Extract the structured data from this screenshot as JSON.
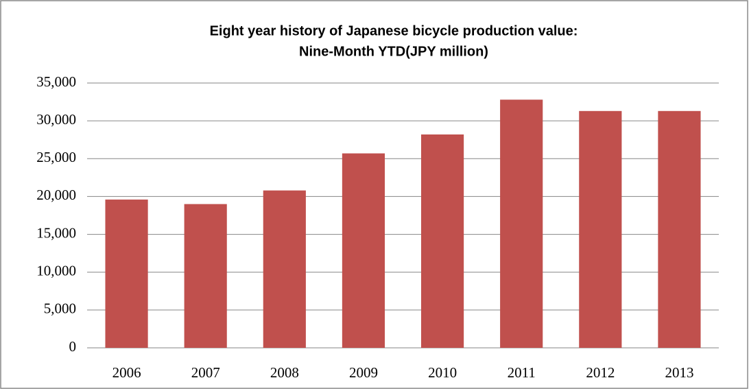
{
  "chart_data": {
    "type": "bar",
    "title": [
      "Eight year history of Japanese bicycle production value:",
      "Nine-Month YTD(JPY million)"
    ],
    "categories": [
      "2006",
      "2007",
      "2008",
      "2009",
      "2010",
      "2011",
      "2012",
      "2013"
    ],
    "values": [
      19600,
      19000,
      20800,
      25700,
      28200,
      32800,
      31300,
      31300
    ],
    "color": "#c0504d",
    "ylim": [
      0,
      35000
    ],
    "yticks": [
      0,
      {
        "value": 5000,
        "label": "5,000"
      },
      {
        "value": 10000,
        "label": "10,000"
      },
      {
        "value": 15000,
        "label": "15,000"
      },
      {
        "value": 20000,
        "label": "20,000"
      },
      {
        "value": 25000,
        "label": "25,000"
      },
      {
        "value": 30000,
        "label": "30,000"
      },
      {
        "value": 35000,
        "label": "35,000"
      }
    ],
    "grid": true
  }
}
